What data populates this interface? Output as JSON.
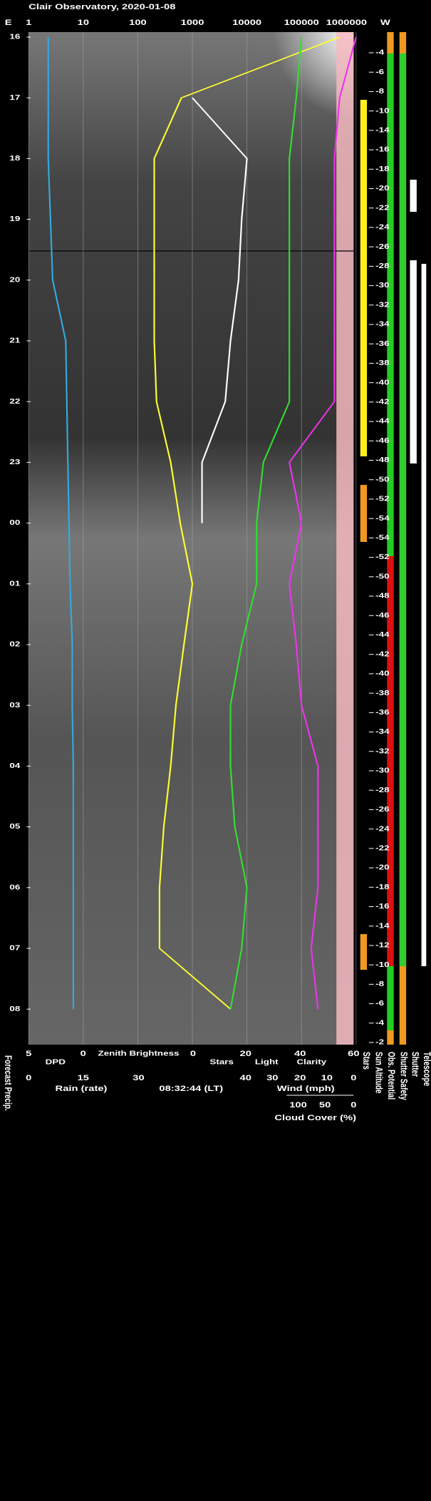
{
  "header": {
    "title": "Clair Observatory, 2020-01-08"
  },
  "chart_data": {
    "type": "line",
    "top_axis": {
      "left_label": "E",
      "right_label": "W",
      "log": true,
      "ticks": [
        1,
        10,
        100,
        1000,
        10000,
        100000,
        1000000
      ]
    },
    "categories": [
      "16",
      "17",
      "18",
      "19",
      "20",
      "21",
      "22",
      "23",
      "00",
      "01",
      "02",
      "03",
      "04",
      "05",
      "06",
      "07",
      "08"
    ],
    "series": [
      {
        "name": "DPD",
        "color": "#33aadd",
        "axis": "dpd",
        "values": [
          3.2,
          3.2,
          3.2,
          3.0,
          2.8,
          1.6,
          1.5,
          1.4,
          1.3,
          1.2,
          1.0,
          1.0,
          0.9,
          0.9,
          0.9,
          0.9,
          0.9
        ]
      },
      {
        "name": "Zenith Brightness",
        "color": "#ffff33",
        "axis": "top",
        "values": [
          500000,
          630,
          200,
          200,
          200,
          200,
          220,
          400,
          600,
          1000,
          700,
          500,
          400,
          300,
          250,
          250,
          5000
        ]
      },
      {
        "name": "Stars",
        "color": "#ffffff",
        "axis": "top",
        "values": [
          null,
          1000,
          10000,
          8000,
          7000,
          5000,
          4000,
          1500,
          1500,
          null,
          null,
          null,
          null,
          null,
          null,
          null,
          null
        ]
      },
      {
        "name": "Clarity",
        "color": "#33dd33",
        "axis": "top",
        "values": [
          100000,
          80000,
          60000,
          60000,
          60000,
          60000,
          60000,
          20000,
          15000,
          15000,
          8000,
          5000,
          5000,
          6000,
          10000,
          8000,
          5000
        ]
      },
      {
        "name": "Cloud Cover (%)",
        "color": "#ee33ee",
        "axis": "top",
        "values": [
          1000000,
          500000,
          400000,
          400000,
          400000,
          400000,
          400000,
          60000,
          100000,
          60000,
          80000,
          100000,
          200000,
          200000,
          200000,
          150000,
          200000
        ]
      }
    ],
    "sun_altitude": [
      -4,
      -6,
      -8,
      -10,
      -14,
      -16,
      -18,
      -20,
      -22,
      -24,
      -26,
      -28,
      -30,
      -32,
      -34,
      -36,
      -38,
      -40,
      -42,
      -44,
      -46,
      -48,
      -50,
      -52,
      -54,
      -54,
      -52,
      -50,
      -48,
      -46,
      -44,
      -42,
      -40,
      -38,
      -36,
      -34,
      -32,
      -30,
      -28,
      -26,
      -24,
      -22,
      -20,
      -18,
      -16,
      -14,
      -12,
      -10,
      -8,
      -6,
      -4,
      -2
    ],
    "strip_labels": [
      "Stars",
      "Sun Altitude",
      "Obs. Potential",
      "Shutter Safety",
      "Shutter",
      "Telescope"
    ],
    "forecast_label": "Forecast Precip.",
    "bottom_axes": {
      "row1_ticks": [
        5,
        0,
        0,
        20,
        40,
        60
      ],
      "light_label": "Light",
      "row2_ticks": [
        0,
        15,
        30,
        40,
        30,
        20,
        10,
        0
      ],
      "rain_label": "Rain (rate)",
      "time": "08:32:44 (LT)",
      "wind_label": "Wind (mph)",
      "row3_ticks": [
        100,
        50,
        0
      ]
    }
  }
}
